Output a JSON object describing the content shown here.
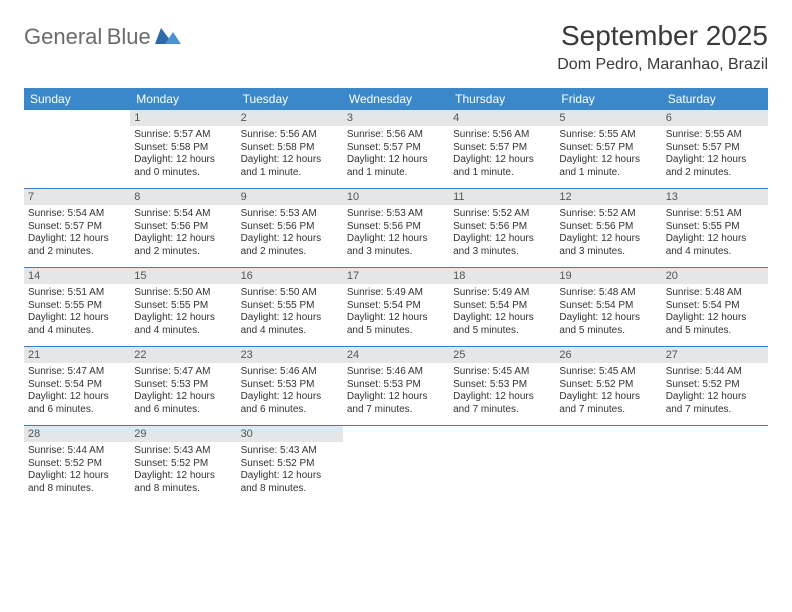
{
  "logo": {
    "text1": "General",
    "text2": "Blue",
    "tri_color": "#2f6aa8"
  },
  "title": "September 2025",
  "location": "Dom Pedro, Maranhao, Brazil",
  "weekdays": [
    "Sunday",
    "Monday",
    "Tuesday",
    "Wednesday",
    "Thursday",
    "Friday",
    "Saturday"
  ],
  "colors": {
    "header_bg": "#3a88c9",
    "header_text": "#ffffff",
    "daynum_bg": "#e4e6e8",
    "week_divider": "#3a7fc4",
    "body_text": "#333333",
    "title_text": "#3a3a3a"
  },
  "weeks": [
    [
      {
        "empty": true
      },
      {
        "day": "1",
        "sunrise": "5:57 AM",
        "sunset": "5:58 PM",
        "daylight": "12 hours and 0 minutes."
      },
      {
        "day": "2",
        "sunrise": "5:56 AM",
        "sunset": "5:58 PM",
        "daylight": "12 hours and 1 minute."
      },
      {
        "day": "3",
        "sunrise": "5:56 AM",
        "sunset": "5:57 PM",
        "daylight": "12 hours and 1 minute."
      },
      {
        "day": "4",
        "sunrise": "5:56 AM",
        "sunset": "5:57 PM",
        "daylight": "12 hours and 1 minute."
      },
      {
        "day": "5",
        "sunrise": "5:55 AM",
        "sunset": "5:57 PM",
        "daylight": "12 hours and 1 minute."
      },
      {
        "day": "6",
        "sunrise": "5:55 AM",
        "sunset": "5:57 PM",
        "daylight": "12 hours and 2 minutes."
      }
    ],
    [
      {
        "day": "7",
        "sunrise": "5:54 AM",
        "sunset": "5:57 PM",
        "daylight": "12 hours and 2 minutes."
      },
      {
        "day": "8",
        "sunrise": "5:54 AM",
        "sunset": "5:56 PM",
        "daylight": "12 hours and 2 minutes."
      },
      {
        "day": "9",
        "sunrise": "5:53 AM",
        "sunset": "5:56 PM",
        "daylight": "12 hours and 2 minutes."
      },
      {
        "day": "10",
        "sunrise": "5:53 AM",
        "sunset": "5:56 PM",
        "daylight": "12 hours and 3 minutes."
      },
      {
        "day": "11",
        "sunrise": "5:52 AM",
        "sunset": "5:56 PM",
        "daylight": "12 hours and 3 minutes."
      },
      {
        "day": "12",
        "sunrise": "5:52 AM",
        "sunset": "5:56 PM",
        "daylight": "12 hours and 3 minutes."
      },
      {
        "day": "13",
        "sunrise": "5:51 AM",
        "sunset": "5:55 PM",
        "daylight": "12 hours and 4 minutes."
      }
    ],
    [
      {
        "day": "14",
        "sunrise": "5:51 AM",
        "sunset": "5:55 PM",
        "daylight": "12 hours and 4 minutes."
      },
      {
        "day": "15",
        "sunrise": "5:50 AM",
        "sunset": "5:55 PM",
        "daylight": "12 hours and 4 minutes."
      },
      {
        "day": "16",
        "sunrise": "5:50 AM",
        "sunset": "5:55 PM",
        "daylight": "12 hours and 4 minutes."
      },
      {
        "day": "17",
        "sunrise": "5:49 AM",
        "sunset": "5:54 PM",
        "daylight": "12 hours and 5 minutes."
      },
      {
        "day": "18",
        "sunrise": "5:49 AM",
        "sunset": "5:54 PM",
        "daylight": "12 hours and 5 minutes."
      },
      {
        "day": "19",
        "sunrise": "5:48 AM",
        "sunset": "5:54 PM",
        "daylight": "12 hours and 5 minutes."
      },
      {
        "day": "20",
        "sunrise": "5:48 AM",
        "sunset": "5:54 PM",
        "daylight": "12 hours and 5 minutes."
      }
    ],
    [
      {
        "day": "21",
        "sunrise": "5:47 AM",
        "sunset": "5:54 PM",
        "daylight": "12 hours and 6 minutes."
      },
      {
        "day": "22",
        "sunrise": "5:47 AM",
        "sunset": "5:53 PM",
        "daylight": "12 hours and 6 minutes."
      },
      {
        "day": "23",
        "sunrise": "5:46 AM",
        "sunset": "5:53 PM",
        "daylight": "12 hours and 6 minutes."
      },
      {
        "day": "24",
        "sunrise": "5:46 AM",
        "sunset": "5:53 PM",
        "daylight": "12 hours and 7 minutes."
      },
      {
        "day": "25",
        "sunrise": "5:45 AM",
        "sunset": "5:53 PM",
        "daylight": "12 hours and 7 minutes."
      },
      {
        "day": "26",
        "sunrise": "5:45 AM",
        "sunset": "5:52 PM",
        "daylight": "12 hours and 7 minutes."
      },
      {
        "day": "27",
        "sunrise": "5:44 AM",
        "sunset": "5:52 PM",
        "daylight": "12 hours and 7 minutes."
      }
    ],
    [
      {
        "day": "28",
        "sunrise": "5:44 AM",
        "sunset": "5:52 PM",
        "daylight": "12 hours and 8 minutes."
      },
      {
        "day": "29",
        "sunrise": "5:43 AM",
        "sunset": "5:52 PM",
        "daylight": "12 hours and 8 minutes."
      },
      {
        "day": "30",
        "sunrise": "5:43 AM",
        "sunset": "5:52 PM",
        "daylight": "12 hours and 8 minutes."
      },
      {
        "empty": true
      },
      {
        "empty": true
      },
      {
        "empty": true
      },
      {
        "empty": true
      }
    ]
  ],
  "labels": {
    "sunrise_prefix": "Sunrise: ",
    "sunset_prefix": "Sunset: ",
    "daylight_prefix": "Daylight: "
  }
}
